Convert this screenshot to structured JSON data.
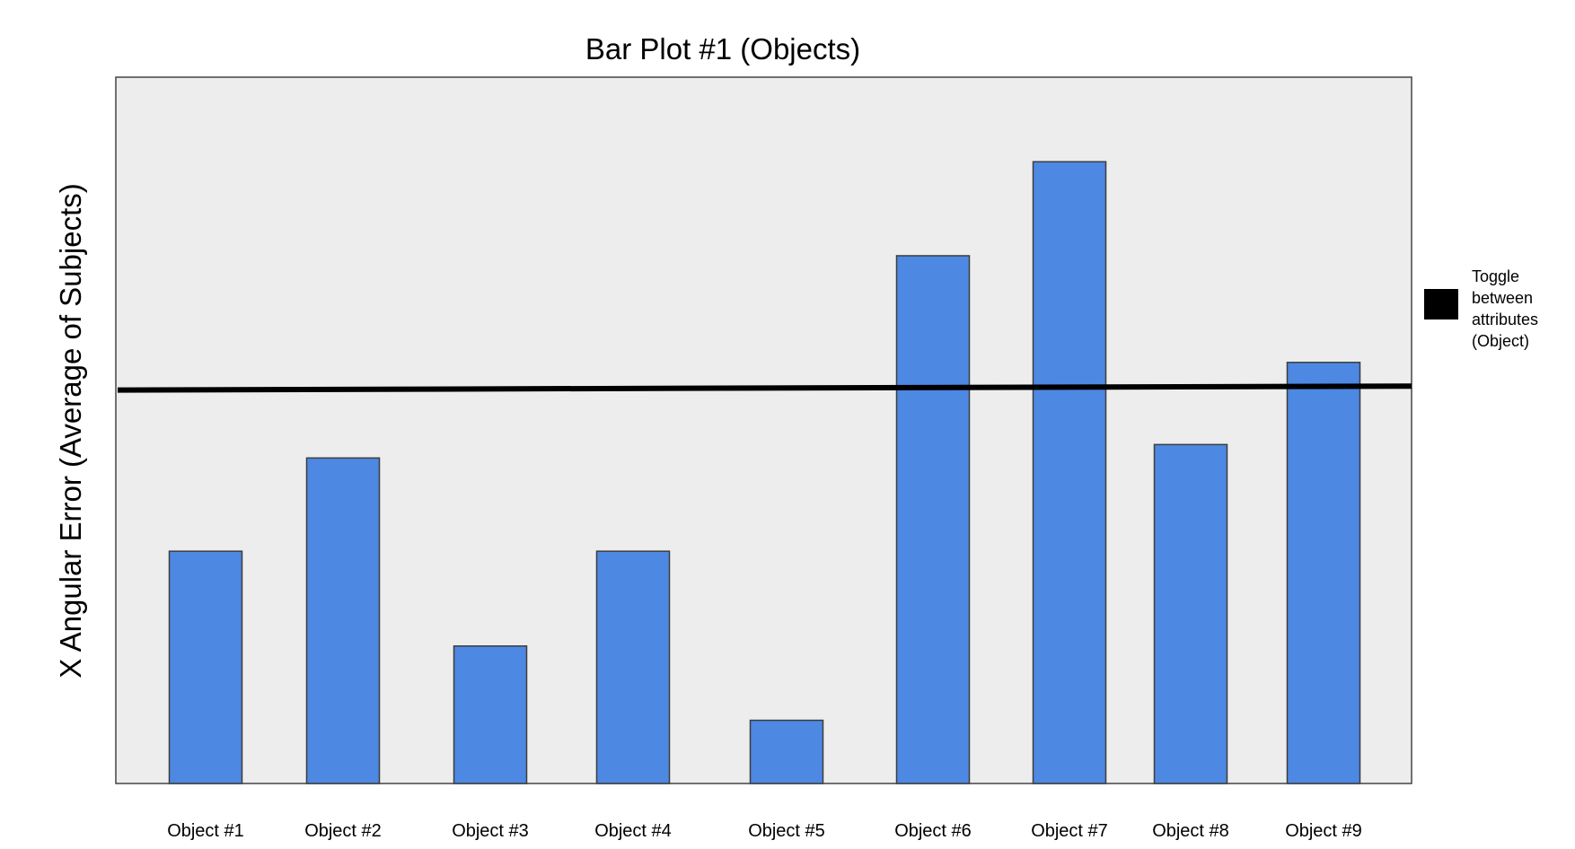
{
  "chart_data": {
    "type": "bar",
    "title": "Bar Plot #1 (Objects)",
    "xlabel": "",
    "ylabel": "X Angular Error (Average of Subjects)",
    "categories": [
      "Object #1",
      "Object #2",
      "Object #3",
      "Object #4",
      "Object #5",
      "Object #6",
      "Object #7",
      "Object #8",
      "Object #9"
    ],
    "values": [
      2.94,
      4.12,
      1.74,
      2.94,
      0.8,
      6.68,
      7.87,
      4.29,
      5.33
    ],
    "ylim": [
      0,
      8.94
    ],
    "grid": false,
    "y_ticks_visible": false,
    "average_line": {
      "value_start": 4.98,
      "value_end": 5.03
    },
    "legend": {
      "position": "right",
      "lines": [
        "Toggle",
        "between",
        "attributes",
        "(Object)"
      ],
      "swatch_color": "#000000"
    },
    "colors": {
      "bar_fill": "#4d88e2",
      "bar_stroke": "#3d3d3d",
      "plot_background": "#ededed",
      "plot_border": "#444444",
      "average_line": "#000000"
    }
  }
}
